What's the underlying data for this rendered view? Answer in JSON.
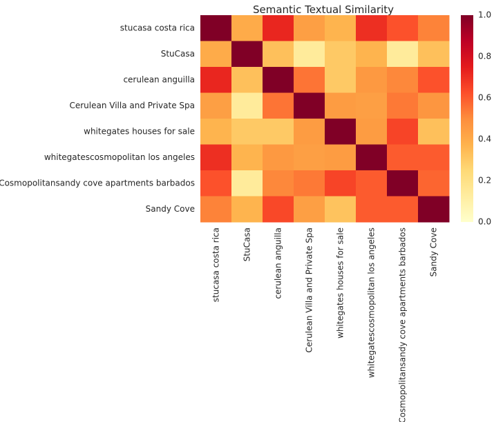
{
  "chart_data": {
    "type": "heatmap",
    "title": "Semantic Textual Similarity",
    "xlabel": "",
    "ylabel": "",
    "labels": [
      "stucasa costa rica",
      "StuCasa",
      "cerulean anguilla",
      "Cerulean Villa and Private Spa",
      "whitegates houses for sale",
      "whitegatescosmopolitan los angeles",
      "The Cosmopolitansandy cove apartments barbados",
      "Sandy Cove"
    ],
    "values": [
      [
        1.0,
        0.4,
        0.72,
        0.44,
        0.37,
        0.7,
        0.62,
        0.52
      ],
      [
        0.4,
        1.0,
        0.33,
        0.14,
        0.3,
        0.37,
        0.14,
        0.33
      ],
      [
        0.72,
        0.33,
        1.0,
        0.55,
        0.3,
        0.46,
        0.51,
        0.62
      ],
      [
        0.44,
        0.14,
        0.55,
        1.0,
        0.45,
        0.44,
        0.54,
        0.47
      ],
      [
        0.37,
        0.3,
        0.3,
        0.45,
        1.0,
        0.45,
        0.65,
        0.33
      ],
      [
        0.7,
        0.37,
        0.46,
        0.44,
        0.45,
        1.0,
        0.6,
        0.6
      ],
      [
        0.62,
        0.14,
        0.51,
        0.54,
        0.65,
        0.6,
        1.0,
        0.58
      ],
      [
        0.52,
        0.37,
        0.64,
        0.44,
        0.32,
        0.6,
        0.6,
        1.0
      ]
    ],
    "colormap": "YlOrRd",
    "vmin": 0.0,
    "vmax": 1.0,
    "colorbar_ticks": [
      "0.0",
      "0.2",
      "0.4",
      "0.6",
      "0.8",
      "1.0"
    ],
    "colorbar_tick_values": [
      0.0,
      0.2,
      0.4,
      0.6,
      0.8,
      1.0
    ]
  }
}
